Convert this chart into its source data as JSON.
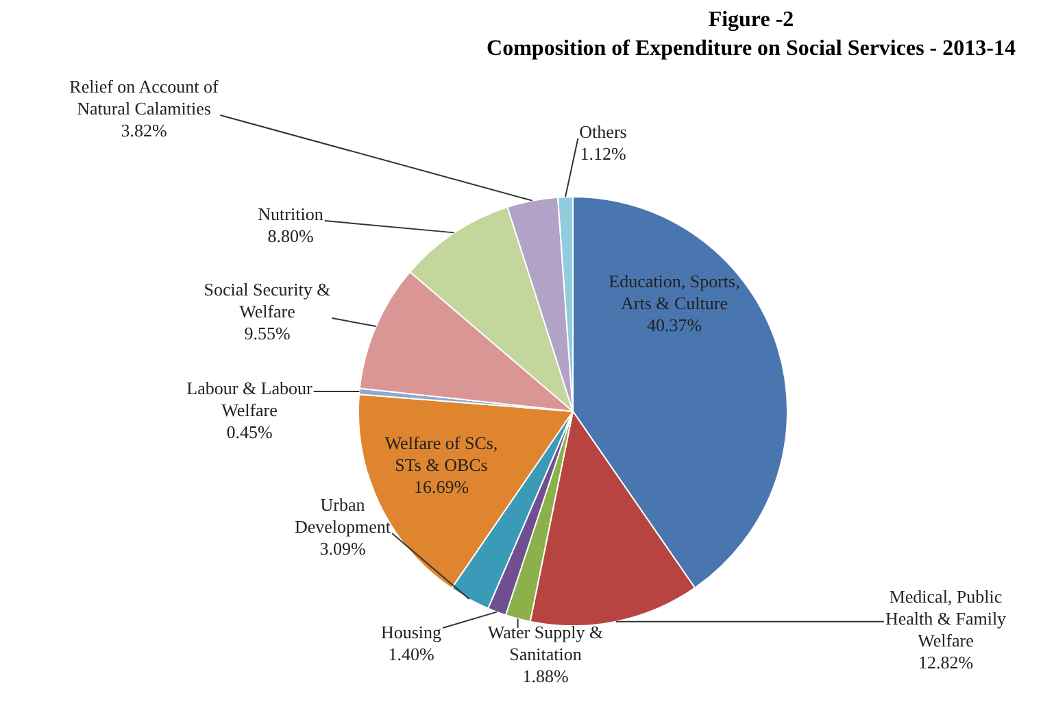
{
  "chart_data": {
    "type": "pie",
    "title": "Figure -2",
    "subtitle": "Composition of Expenditure on Social Services - 2013-14",
    "categories": [
      "Education, Sports, Arts & Culture",
      "Medical, Public Health & Family Welfare",
      "Water Supply & Sanitation",
      "Housing",
      "Urban Development",
      "Welfare of SCs, STs & OBCs",
      "Labour & Labour Welfare",
      "Social Security & Welfare",
      "Nutrition",
      "Relief on Account of Natural Calamities",
      "Others"
    ],
    "values": [
      40.37,
      12.82,
      1.88,
      1.4,
      3.09,
      16.69,
      0.45,
      9.55,
      8.8,
      3.82,
      1.12
    ],
    "value_labels": [
      "40.37%",
      "12.82%",
      "1.88%",
      "1.40%",
      "3.09%",
      "16.69%",
      "0.45%",
      "9.55%",
      "8.80%",
      "3.82%",
      "1.12%"
    ],
    "colors": [
      "#4a76b0",
      "#b84442",
      "#8cb04a",
      "#6f4f8f",
      "#3a9ab8",
      "#e0852f",
      "#8fa8d0",
      "#d99694",
      "#c3d69b",
      "#b3a2c7",
      "#93cddd"
    ],
    "legend": false
  }
}
